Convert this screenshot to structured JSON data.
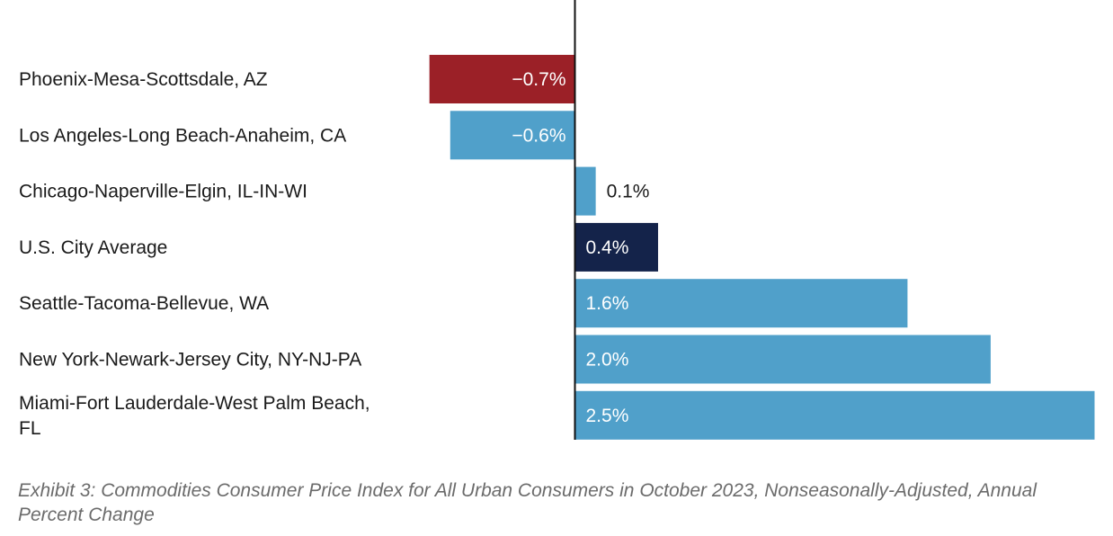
{
  "chart_data": {
    "type": "bar",
    "orientation": "horizontal",
    "categories": [
      "Phoenix-Mesa-Scottsdale, AZ",
      "Los Angeles-Long Beach-Anaheim, CA",
      "Chicago-Naperville-Elgin, IL-IN-WI",
      "U.S. City Average",
      "Seattle-Tacoma-Bellevue, WA",
      "New York-Newark-Jersey City, NY-NJ-PA",
      "Miami-Fort Lauderdale-West Palm Beach, FL"
    ],
    "values": [
      -0.7,
      -0.6,
      0.1,
      0.4,
      1.6,
      2.0,
      2.5
    ],
    "labels": [
      "−0.7%",
      "−0.6%",
      "0.1%",
      "0.4%",
      "1.6%",
      "2.0%",
      "2.5%"
    ],
    "colors": [
      "#9B2027",
      "#50A0CA",
      "#50A0CA",
      "#14234A",
      "#50A0CA",
      "#50A0CA",
      "#50A0CA"
    ],
    "xlim": [
      -2.76,
      2.5
    ],
    "grid": false,
    "zero_line": true
  },
  "caption": "Exhibit 3: Commodities Consumer Price Index for All Urban Consumers in October 2023, Nonseasonally-Adjusted, Annual Percent Change"
}
